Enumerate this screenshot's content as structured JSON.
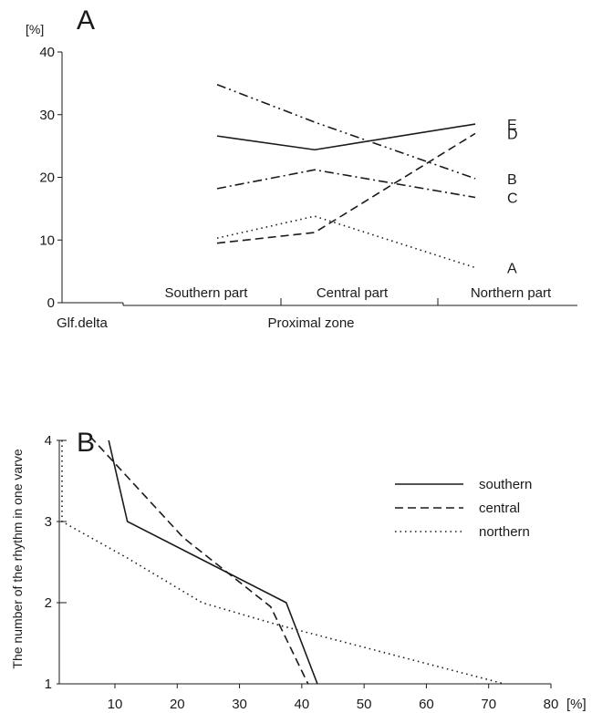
{
  "chart_data": [
    {
      "panel_label": "A",
      "type": "line",
      "ylabel": "[%]",
      "ylim": [
        0,
        40
      ],
      "yticks": [
        0,
        10,
        20,
        30,
        40
      ],
      "x_category_labels": [
        "Southern part",
        "Central part",
        "Northern part"
      ],
      "x_left_label": "Glf.delta",
      "x_group_label": "Proximal zone",
      "series": [
        {
          "name": "E",
          "style": "solid",
          "values": [
            26.6,
            24.4,
            28.5
          ]
        },
        {
          "name": "D",
          "style": "dashed",
          "values": [
            9.5,
            11.2,
            27.0
          ]
        },
        {
          "name": "B",
          "style": "dashdotdot",
          "values": [
            34.8,
            28.8,
            19.8
          ]
        },
        {
          "name": "C",
          "style": "dashdot",
          "values": [
            18.2,
            21.2,
            16.8
          ]
        },
        {
          "name": "A",
          "style": "dotted",
          "values": [
            10.3,
            13.8,
            5.6
          ]
        }
      ]
    },
    {
      "panel_label": "B",
      "type": "line",
      "xlabel": "[%]",
      "ylabel": "The number of the rhythm in one varve",
      "xlim": [
        0,
        80
      ],
      "ylim": [
        1,
        4
      ],
      "xticks": [
        10,
        20,
        30,
        40,
        50,
        60,
        70,
        80
      ],
      "yticks": [
        1,
        2,
        3,
        4
      ],
      "legend_position": "right",
      "series": [
        {
          "name": "southern",
          "style": "solid",
          "points": [
            [
              9,
              4
            ],
            [
              12,
              3
            ],
            [
              37.5,
              2
            ],
            [
              42.5,
              1
            ]
          ]
        },
        {
          "name": "central",
          "style": "dashed",
          "points": [
            [
              6,
              4.05
            ],
            [
              21,
              2.8
            ],
            [
              35,
              1.95
            ],
            [
              41,
              1
            ]
          ]
        },
        {
          "name": "northern",
          "style": "dotted",
          "points": [
            [
              1.5,
              4
            ],
            [
              1.5,
              3
            ],
            [
              12,
              2.55
            ],
            [
              24,
              2
            ],
            [
              36,
              1.73
            ],
            [
              72.5,
              1
            ]
          ]
        }
      ]
    }
  ]
}
